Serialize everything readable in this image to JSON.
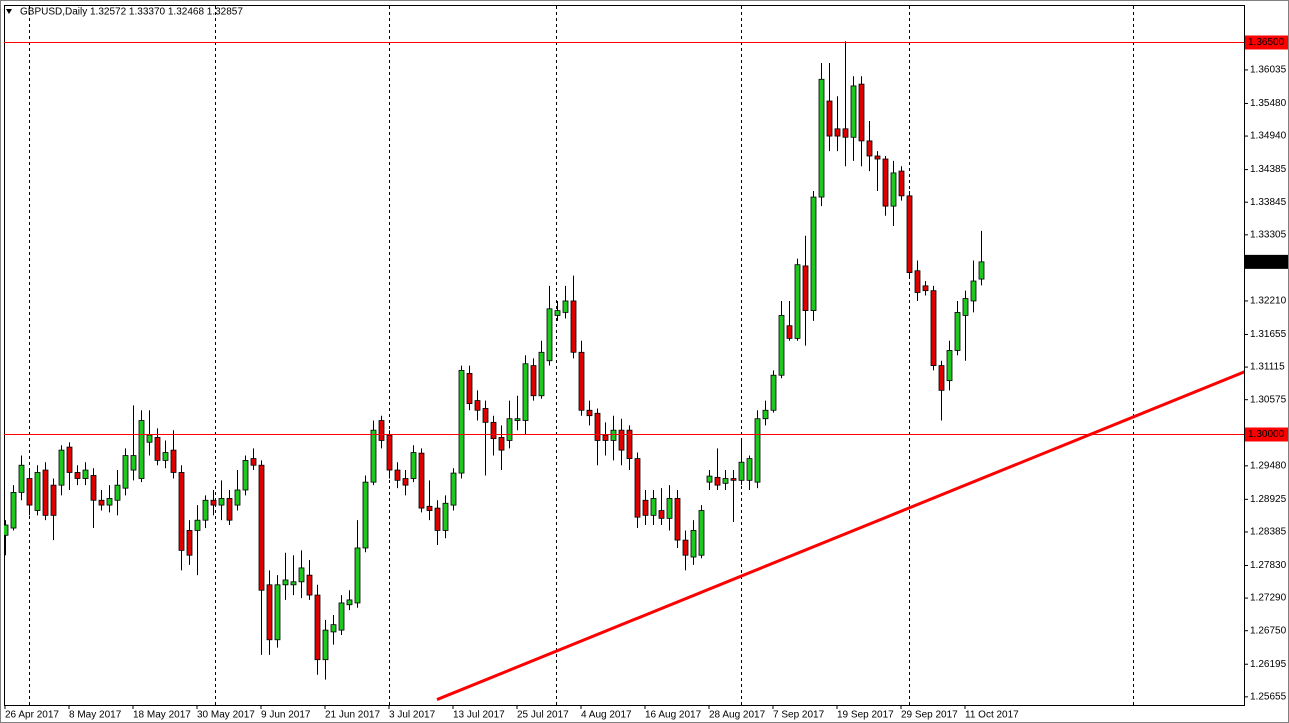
{
  "chart_data": {
    "type": "candlestick",
    "title": "GBPUSD,Daily",
    "info": "1.32572 1.33370 1.32468 1.32857",
    "categories": [
      "26 Apr 2017",
      null,
      null,
      null,
      null,
      null,
      null,
      null,
      "8 May 2017",
      null,
      null,
      null,
      null,
      null,
      null,
      null,
      "18 May 2017",
      null,
      null,
      null,
      null,
      null,
      null,
      null,
      "30 May 2017",
      null,
      null,
      null,
      null,
      null,
      null,
      null,
      "9 Jun 2017",
      null,
      null,
      null,
      null,
      null,
      null,
      null,
      "21 Jun 2017",
      null,
      null,
      null,
      null,
      null,
      null,
      null,
      "3 Jul 2017",
      null,
      null,
      null,
      null,
      null,
      null,
      null,
      "13 Jul 2017",
      null,
      null,
      null,
      null,
      null,
      null,
      null,
      "25 Jul 2017",
      null,
      null,
      null,
      null,
      null,
      null,
      null,
      "4 Aug 2017",
      null,
      null,
      null,
      null,
      null,
      null,
      null,
      "16 Aug 2017",
      null,
      null,
      null,
      null,
      null,
      null,
      null,
      "28 Aug 2017",
      null,
      null,
      null,
      null,
      null,
      null,
      null,
      "7 Sep 2017",
      null,
      null,
      null,
      null,
      null,
      null,
      null,
      "19 Sep 2017",
      null,
      null,
      null,
      null,
      null,
      null,
      null,
      "29 Sep 2017",
      null,
      null,
      null,
      null,
      null,
      null,
      null,
      "11 Oct 2017",
      null,
      null
    ],
    "series": [
      {
        "name": "GBPUSD",
        "up_color": "#1ec81e",
        "down_color": "#e00000",
        "wick_color": "#000000",
        "open": [
          1.2833,
          1.2845,
          1.2904,
          1.2927,
          1.2874,
          1.2941,
          1.2916,
          1.2916,
          1.2979,
          1.2937,
          1.2927,
          1.2932,
          1.2891,
          1.2883,
          1.2891,
          1.2911,
          1.2941,
          1.2927,
          1.2987,
          1.2995,
          1.2957,
          1.2974,
          1.2937,
          1.2841,
          1.2841,
          1.2858,
          1.2891,
          1.2883,
          1.2894,
          1.2883,
          1.2908,
          1.296,
          1.2949,
          1.2751,
          1.266,
          1.2751,
          1.2751,
          1.2756,
          1.2767,
          1.2734,
          1.2627,
          1.2673,
          1.2676,
          1.2718,
          1.2721,
          1.2812,
          1.2921,
          1.3023,
          1.2999,
          1.2941,
          1.2927,
          1.2927,
          1.2969,
          1.2881,
          1.2878,
          1.2841,
          1.2883,
          1.2936,
          1.3101,
          1.3056,
          1.3043,
          1.302,
          1.2995,
          1.299,
          1.3023,
          1.3023,
          1.3114,
          1.3064,
          1.3122,
          1.3197,
          1.3202,
          1.3221,
          1.3136,
          1.304,
          1.3035,
          1.2999,
          1.299,
          1.3007,
          1.3007,
          1.296,
          1.2891,
          1.2866,
          1.2874,
          1.2861,
          1.2894,
          1.2825,
          1.2797,
          1.28,
          1.2921,
          1.2929,
          1.2919,
          1.2927,
          1.2924,
          1.2924,
          1.2921,
          1.3026,
          1.304,
          1.3098,
          1.318,
          1.3159,
          1.3279,
          1.3205,
          1.3393,
          1.3552,
          1.3506,
          1.3506,
          1.3492,
          1.358,
          1.3486,
          1.3461,
          1.3456,
          1.3378,
          1.3436,
          1.3395,
          1.3271,
          1.3246,
          1.3238,
          1.3114,
          1.3089,
          1.3139,
          1.3197,
          1.3221,
          1.32572
        ],
        "high": [
          1.2858,
          1.2916,
          1.2965,
          1.2941,
          1.2949,
          1.2954,
          1.2927,
          1.2982,
          1.2987,
          1.2949,
          1.2954,
          1.2944,
          1.2908,
          1.2916,
          1.2941,
          1.2977,
          1.3048,
          1.304,
          1.304,
          1.301,
          1.299,
          1.3007,
          1.2949,
          1.2858,
          1.2883,
          1.2899,
          1.2908,
          1.2924,
          1.2908,
          1.2941,
          1.2965,
          1.2977,
          1.2957,
          1.2775,
          1.2767,
          1.2804,
          1.28,
          1.2808,
          1.2792,
          1.2751,
          1.2693,
          1.2701,
          1.2734,
          1.2742,
          1.2858,
          1.2932,
          1.3023,
          1.3031,
          1.3007,
          1.2954,
          1.2941,
          1.2982,
          1.2977,
          1.2924,
          1.2891,
          1.2899,
          1.2944,
          1.3114,
          1.3114,
          1.3073,
          1.3056,
          1.3031,
          1.3015,
          1.3056,
          1.3064,
          1.3131,
          1.3126,
          1.3155,
          1.3246,
          1.3221,
          1.3246,
          1.3263,
          1.3155,
          1.3056,
          1.3043,
          1.302,
          1.3031,
          1.3026,
          1.3015,
          1.297,
          1.2908,
          1.2908,
          1.2911,
          1.2916,
          1.2908,
          1.2841,
          1.2858,
          1.2883,
          1.2941,
          1.2977,
          1.2941,
          1.2941,
          1.299,
          1.2965,
          1.304,
          1.3056,
          1.3106,
          1.3221,
          1.3221,
          1.3291,
          1.3329,
          1.3403,
          1.3615,
          1.3615,
          1.356,
          1.3651,
          1.3593,
          1.3593,
          1.3519,
          1.3469,
          1.3461,
          1.3453,
          1.3444,
          1.3403,
          1.3288,
          1.3254,
          1.3246,
          1.3122,
          1.3155,
          1.3221,
          1.3238,
          1.3288,
          1.3337
        ],
        "low": [
          1.28,
          1.2841,
          1.2891,
          1.2866,
          1.2866,
          1.2858,
          1.2825,
          1.2899,
          1.2908,
          1.2916,
          1.2916,
          1.2845,
          1.2874,
          1.2871,
          1.2866,
          1.2899,
          1.2924,
          1.2921,
          1.2965,
          1.2949,
          1.2944,
          1.2927,
          1.2775,
          1.2784,
          1.2767,
          1.2845,
          1.2866,
          1.2858,
          1.285,
          1.2874,
          1.2899,
          1.2941,
          1.2635,
          1.2635,
          1.2647,
          1.2726,
          1.2734,
          1.2729,
          1.2726,
          1.2602,
          1.2594,
          1.2652,
          1.2668,
          1.2709,
          1.2713,
          1.2805,
          1.2916,
          1.2977,
          1.2927,
          1.2911,
          1.2899,
          1.2921,
          1.2871,
          1.2858,
          1.2817,
          1.2828,
          1.2874,
          1.2927,
          1.304,
          1.3023,
          1.2932,
          1.2965,
          1.2941,
          1.2977,
          1.3007,
          1.2999,
          1.3056,
          1.3059,
          1.3114,
          1.3188,
          1.3192,
          1.3126,
          1.3031,
          1.3015,
          1.2949,
          1.2965,
          1.2957,
          1.2949,
          1.2941,
          1.2845,
          1.285,
          1.285,
          1.285,
          1.2841,
          1.2812,
          1.2775,
          1.2784,
          1.2795,
          1.2908,
          1.2908,
          1.2908,
          1.2855,
          1.2916,
          1.2908,
          1.2911,
          1.3015,
          1.3036,
          1.3093,
          1.3155,
          1.3155,
          1.3147,
          1.3188,
          1.3378,
          1.3469,
          1.3469,
          1.3444,
          1.3453,
          1.3444,
          1.3436,
          1.3403,
          1.3362,
          1.3345,
          1.3387,
          1.3258,
          1.3221,
          1.323,
          1.3106,
          1.3023,
          1.3073,
          1.3131,
          1.3122,
          1.3202,
          1.32468
        ],
        "close": [
          1.285,
          1.2904,
          1.2949,
          1.2883,
          1.2937,
          1.2866,
          1.2866,
          1.2974,
          1.2937,
          1.2927,
          1.2941,
          1.2891,
          1.2883,
          1.2894,
          1.2916,
          1.2965,
          1.2965,
          1.3023,
          1.2999,
          1.2957,
          1.297,
          1.2937,
          1.2808,
          1.28,
          1.2858,
          1.2891,
          1.2883,
          1.2894,
          1.2858,
          1.2908,
          1.2957,
          1.2949,
          1.2742,
          1.266,
          1.2751,
          1.2759,
          1.2756,
          1.2779,
          1.2734,
          1.2627,
          1.2676,
          1.2685,
          1.2721,
          1.2726,
          1.2812,
          1.2921,
          1.3007,
          1.299,
          1.2941,
          1.2924,
          1.2916,
          1.297,
          1.2878,
          1.2874,
          1.2841,
          1.2886,
          1.2936,
          1.3106,
          1.3051,
          1.304,
          1.302,
          1.2993,
          1.2974,
          1.3026,
          1.3026,
          1.3117,
          1.3064,
          1.3136,
          1.3208,
          1.3205,
          1.3221,
          1.3136,
          1.304,
          1.3031,
          1.299,
          1.299,
          1.3007,
          1.2974,
          1.296,
          1.2863,
          1.2866,
          1.2894,
          1.2861,
          1.2894,
          1.2825,
          1.28,
          1.2841,
          1.2874,
          1.2931,
          1.2916,
          1.2927,
          1.2924,
          1.2954,
          1.296,
          1.3026,
          1.304,
          1.3098,
          1.3197,
          1.3159,
          1.3281,
          1.3205,
          1.3393,
          1.3588,
          1.3494,
          1.3494,
          1.3492,
          1.3577,
          1.3486,
          1.3461,
          1.3456,
          1.3378,
          1.3433,
          1.3395,
          1.3268,
          1.3235,
          1.3238,
          1.3114,
          1.3073,
          1.3139,
          1.3202,
          1.3225,
          1.3254,
          1.32857
        ]
      }
    ],
    "ylim": [
      1.2552,
      1.3711
    ],
    "yticks": [
      1.36035,
      {
        "value": 1.3548,
        "label": "1.35480"
      },
      {
        "value": 1.3494,
        "label": "1.34940"
      },
      1.34385,
      1.33845,
      1.33305,
      {
        "value": 1.3221,
        "label": "1.32210"
      },
      1.31655,
      1.31115,
      1.30575,
      {
        "value": 1.2948,
        "label": "1.29480"
      },
      1.28925,
      1.28385,
      {
        "value": 1.2783,
        "label": "1.27830"
      },
      {
        "value": 1.2729,
        "label": "1.27290"
      },
      {
        "value": 1.2675,
        "label": "1.26750"
      },
      1.26195,
      1.25655
    ],
    "levels": [
      {
        "value": 1.365,
        "label": "1.36500"
      },
      {
        "value": 1.3,
        "label": "1.30000"
      }
    ],
    "level_color": "#ff0000",
    "last_price": 1.32857,
    "trendline": {
      "x": [
        54,
        155
      ],
      "values": [
        1.2561,
        1.3104
      ],
      "color": "#ff0000"
    }
  }
}
